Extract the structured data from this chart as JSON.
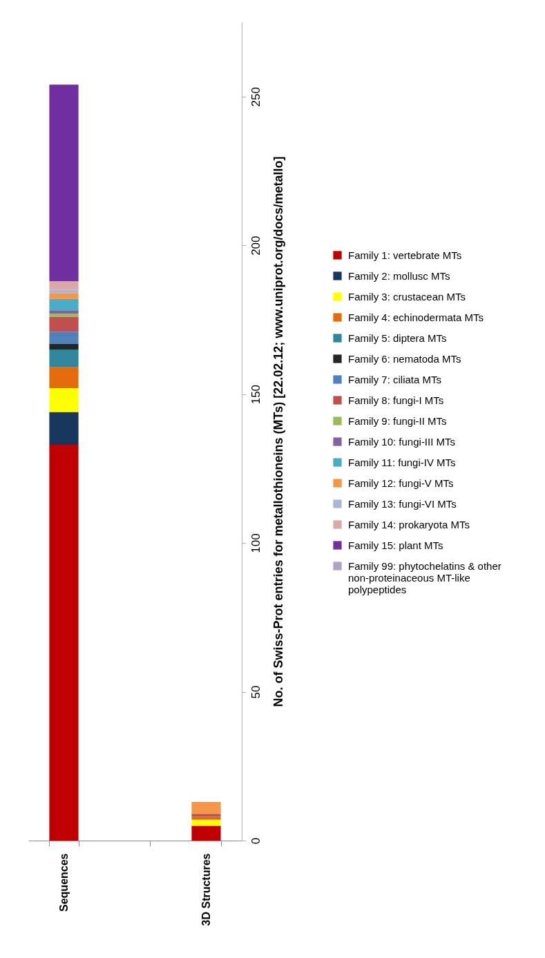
{
  "chart_data": {
    "type": "bar",
    "stacked": true,
    "ylabel": "No. of Swiss-Prot entries for metallothioneins (MTs) [22.02.12; www.uniprot.org/docs/metallo]",
    "categories": [
      "Sequences",
      null,
      "3D Structures"
    ],
    "ylim": [
      0,
      275
    ],
    "yticks": [
      0,
      50,
      100,
      150,
      200,
      250
    ],
    "grid": false,
    "legend": "right",
    "series": [
      {
        "name": "Family 1: vertebrate MTs",
        "color": "#c00000",
        "values": [
          133,
          null,
          5
        ]
      },
      {
        "name": "Family 2: mollusc MTs",
        "color": "#17375e",
        "values": [
          11,
          null,
          null
        ]
      },
      {
        "name": "Family 3: crustacean MTs",
        "color": "#ffff00",
        "values": [
          8,
          null,
          2
        ]
      },
      {
        "name": "Family 4: echinodermata MTs",
        "color": "#e46c0a",
        "values": [
          7,
          null,
          1
        ]
      },
      {
        "name": "Family 5: diptera MTs",
        "color": "#31859c",
        "values": [
          6,
          null,
          null
        ]
      },
      {
        "name": "Family 6: nematoda MTs",
        "color": "#262626",
        "values": [
          2,
          null,
          null
        ]
      },
      {
        "name": "Family 7: ciliata MTs",
        "color": "#4f81bd",
        "values": [
          4,
          null,
          null
        ]
      },
      {
        "name": "Family 8: fungi-I MTs",
        "color": "#c0504d",
        "values": [
          5,
          null,
          1
        ]
      },
      {
        "name": "Family 9: fungi-II MTs",
        "color": "#9bbb59",
        "values": [
          1,
          null,
          null
        ]
      },
      {
        "name": "Family 10: fungi-III MTs",
        "color": "#8064a2",
        "values": [
          1,
          null,
          null
        ]
      },
      {
        "name": "Family 11: fungi-IV MTs",
        "color": "#4bacc6",
        "values": [
          4,
          null,
          null
        ]
      },
      {
        "name": "Family 12: fungi-V MTs",
        "color": "#f79646",
        "values": [
          2,
          null,
          4
        ]
      },
      {
        "name": "Family 13: fungi-VI MTs",
        "color": "#a9b8d9",
        "values": [
          1,
          null,
          null
        ]
      },
      {
        "name": "Family 14: prokaryota MTs",
        "color": "#dba9a8",
        "values": [
          3,
          null,
          null
        ]
      },
      {
        "name": "Family 15: plant MTs",
        "color": "#7030a0",
        "values": [
          66,
          null,
          null
        ]
      },
      {
        "name": "Family 99: phytochelatins & other non-proteinaceous MT-like polypeptides",
        "color": "#b3a2c7",
        "values": [
          null,
          null,
          null
        ]
      }
    ]
  }
}
